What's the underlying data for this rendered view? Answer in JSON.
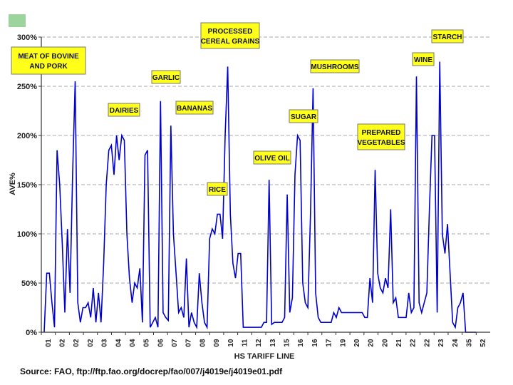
{
  "source_text": "Source: FAO, ftp://ftp.fao.org/docrep/fao/007/j4019e/j4019e01.pdf",
  "colors": {
    "line": "#0000cc",
    "label_bg": "#ffff1a",
    "accent": "#9dd39d",
    "grid": "#aaaaaa"
  },
  "chart_data": {
    "type": "line",
    "title": "",
    "xlabel": "HS TARIFF LINE",
    "ylabel": "AVE%",
    "ylim": [
      0,
      300
    ],
    "yticks": [
      0,
      50,
      100,
      150,
      200,
      250,
      300
    ],
    "ytick_labels": [
      "0%",
      "50%",
      "100%",
      "150%",
      "200%",
      "250%",
      "300%"
    ],
    "xtick_labels": [
      "01",
      "02",
      "02",
      "02",
      "03",
      "04",
      "04",
      "05",
      "06",
      "07",
      "07",
      "08",
      "09",
      "10",
      "11",
      "12",
      "13",
      "15",
      "16",
      "16",
      "17",
      "19",
      "20",
      "20",
      "20",
      "21",
      "22",
      "22",
      "23",
      "24",
      "35",
      "52"
    ],
    "grid": true,
    "series": [
      {
        "values": [
          0,
          60,
          60,
          30,
          5,
          185,
          150,
          90,
          20,
          105,
          40,
          160,
          255,
          30,
          10,
          25,
          25,
          30,
          15,
          45,
          10,
          40,
          10,
          70,
          150,
          185,
          190,
          160,
          200,
          175,
          200,
          195,
          100,
          55,
          30,
          50,
          45,
          65,
          10,
          180,
          185,
          5,
          10,
          15,
          5,
          235,
          20,
          15,
          12,
          210,
          100,
          60,
          20,
          25,
          15,
          75,
          5,
          20,
          10,
          5,
          60,
          30,
          10,
          5,
          95,
          105,
          100,
          120,
          120,
          95,
          200,
          270,
          120,
          70,
          55,
          80,
          80,
          5,
          5,
          5,
          5,
          5,
          5,
          5,
          5,
          10,
          10,
          155,
          8,
          10,
          10,
          10,
          10,
          15,
          140,
          20,
          35,
          160,
          200,
          195,
          50,
          30,
          25,
          120,
          248,
          40,
          15,
          10,
          10,
          10,
          10,
          10,
          20,
          15,
          25,
          20,
          20,
          20,
          20,
          20,
          20,
          20,
          20,
          20,
          15,
          15,
          55,
          30,
          165,
          60,
          45,
          40,
          55,
          45,
          125,
          30,
          35,
          15,
          15,
          15,
          15,
          40,
          20,
          25,
          260,
          30,
          20,
          30,
          40,
          125,
          200,
          200,
          20,
          275,
          100,
          80,
          110,
          60,
          10,
          5,
          25,
          30,
          40,
          0,
          0,
          0,
          0,
          0
        ]
      }
    ],
    "annotations": [
      {
        "lines": [
          "MEAT OF BOVINE",
          "AND PORK"
        ]
      },
      {
        "lines": [
          "GARLIC"
        ]
      },
      {
        "lines": [
          "PROCESSED",
          "CEREAL GRAINS"
        ]
      },
      {
        "lines": [
          "DAIRIES"
        ]
      },
      {
        "lines": [
          "BANANAS"
        ]
      },
      {
        "lines": [
          "RICE"
        ]
      },
      {
        "lines": [
          "OLIVE OIL"
        ]
      },
      {
        "lines": [
          "SUGAR"
        ]
      },
      {
        "lines": [
          "MUSHROOMS"
        ]
      },
      {
        "lines": [
          "PREPARED",
          "VEGETABLES"
        ]
      },
      {
        "lines": [
          "WINE"
        ]
      },
      {
        "lines": [
          "STARCH"
        ]
      }
    ]
  }
}
